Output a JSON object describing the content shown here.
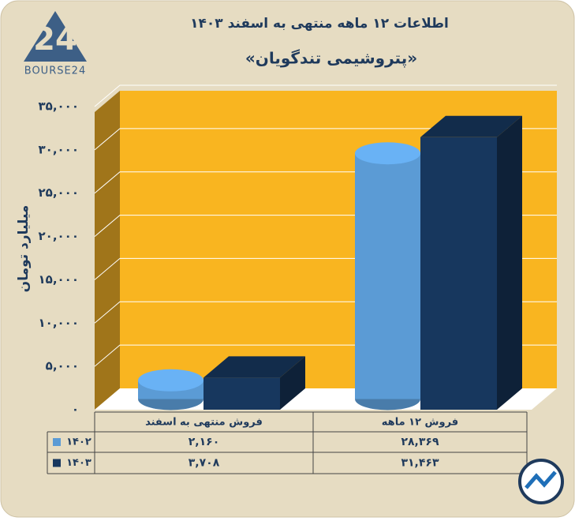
{
  "logo": "BOURSE24",
  "chart_data": {
    "type": "bar3d",
    "title": "اطلاعات ۱۲ ماهه منتهی به اسفند ۱۴۰۳",
    "subtitle": "«پتروشیمی تندگویان»",
    "y_label": "میلیارد تومان",
    "categories": [
      "فروش منتهی به  اسفند",
      "فروش ۱۲  ماهه"
    ],
    "series": [
      {
        "name": "۱۴۰۲",
        "color": "#5b9bd5",
        "shape": "cylinder",
        "values": [
          2160,
          28369
        ],
        "value_labels": [
          "۲,۱۶۰",
          "۲۸,۳۶۹"
        ]
      },
      {
        "name": "۱۴۰۳",
        "color": "#17375e",
        "shape": "box",
        "values": [
          3708,
          31463
        ],
        "value_labels": [
          "۳,۷۰۸",
          "۳۱,۴۶۳"
        ]
      }
    ],
    "ylim": [
      0,
      35000
    ],
    "yticks": [
      {
        "value": 0,
        "label": "۰"
      },
      {
        "value": 5000,
        "label": "۵,۰۰۰"
      },
      {
        "value": 10000,
        "label": "۱۰,۰۰۰"
      },
      {
        "value": 15000,
        "label": "۱۵,۰۰۰"
      },
      {
        "value": 20000,
        "label": "۲۰,۰۰۰"
      },
      {
        "value": 25000,
        "label": "۲۵,۰۰۰"
      },
      {
        "value": 30000,
        "label": "۳۰,۰۰۰"
      },
      {
        "value": 35000,
        "label": "۳۵,۰۰۰"
      }
    ],
    "grid": true
  }
}
